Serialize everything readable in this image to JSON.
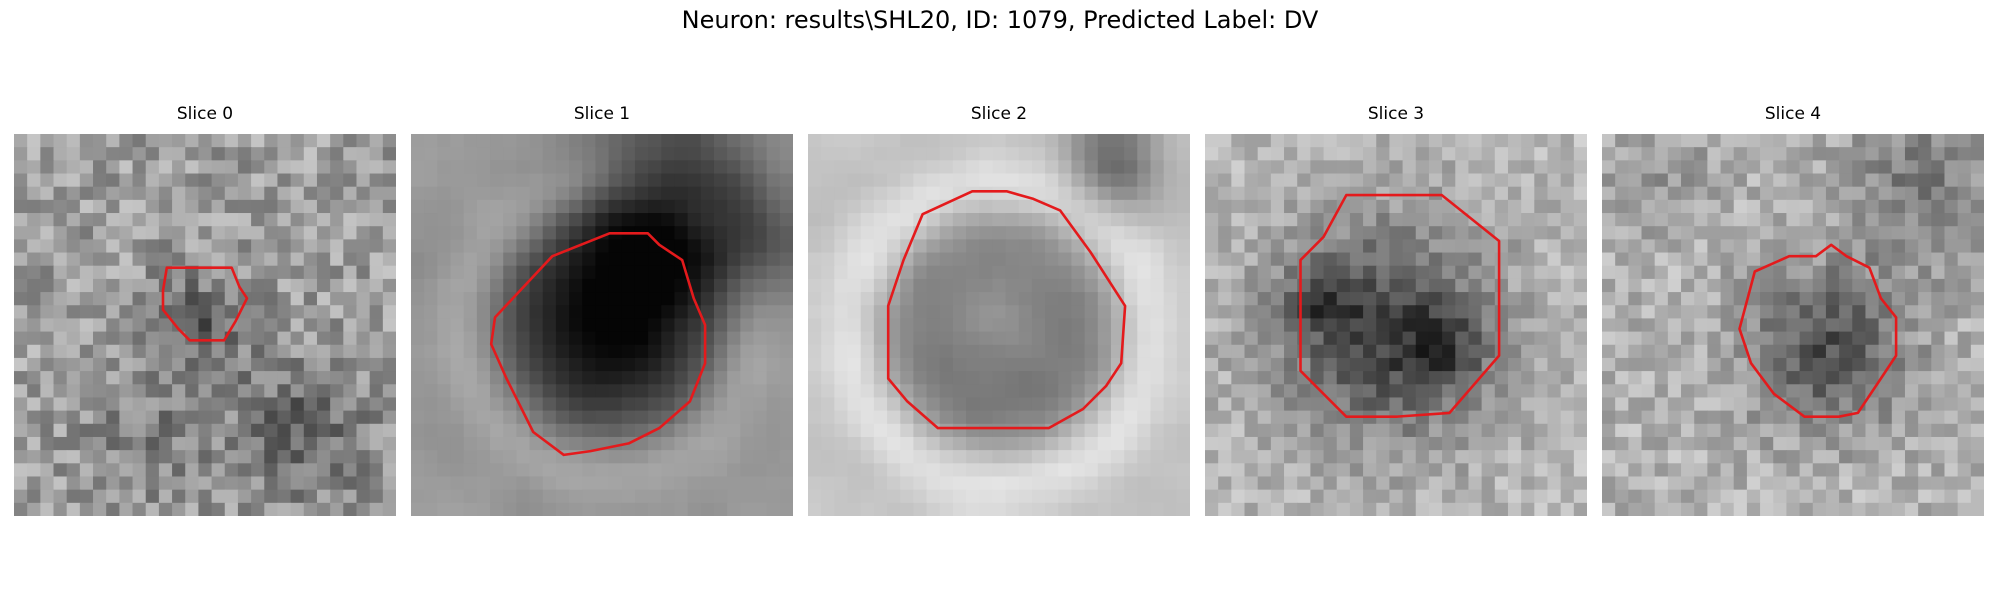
{
  "figure": {
    "title": "Neuron: results\\SHL20, ID: 1079, Predicted Label: DV",
    "contour_color": "#e41a1c"
  },
  "panels": [
    {
      "label": "Slice 0"
    },
    {
      "label": "Slice 1"
    },
    {
      "label": "Slice 2"
    },
    {
      "label": "Slice 3"
    },
    {
      "label": "Slice 4"
    }
  ]
}
